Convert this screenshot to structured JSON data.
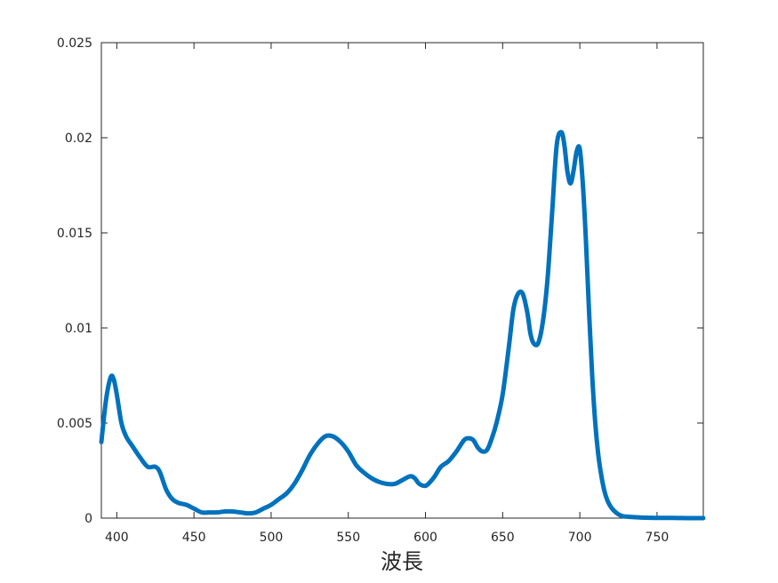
{
  "chart_data": {
    "type": "line",
    "title": "",
    "xlabel": "波長",
    "ylabel": "",
    "xlim": [
      390,
      780
    ],
    "ylim": [
      0,
      0.025
    ],
    "xticks": [
      400,
      450,
      500,
      550,
      600,
      650,
      700,
      750
    ],
    "yticks": [
      0,
      0.005,
      0.01,
      0.015,
      0.02,
      0.025
    ],
    "xtick_labels": [
      "400",
      "450",
      "500",
      "550",
      "600",
      "650",
      "700",
      "750"
    ],
    "ytick_labels": [
      "0",
      "0.005",
      "0.01",
      "0.015",
      "0.02",
      "0.025"
    ],
    "grid": false,
    "colors": {
      "line": "#0072BD",
      "axis": "#262626",
      "background": "#ffffff"
    },
    "series": [
      {
        "x": [
          390,
          393,
          396,
          398,
          400,
          403,
          406,
          410,
          415,
          420,
          425,
          428,
          432,
          436,
          440,
          445,
          450,
          455,
          460,
          465,
          470,
          475,
          480,
          485,
          490,
          495,
          500,
          505,
          510,
          515,
          520,
          525,
          530,
          535,
          540,
          545,
          550,
          555,
          560,
          565,
          570,
          575,
          580,
          585,
          590,
          593,
          596,
          600,
          603,
          606,
          610,
          615,
          620,
          625,
          628,
          631,
          634,
          637,
          640,
          643,
          646,
          650,
          654,
          657,
          660,
          663,
          666,
          668,
          670,
          673,
          676,
          679,
          682,
          685,
          688,
          690,
          692,
          694,
          696,
          698,
          700,
          702,
          704,
          706,
          708,
          710,
          712,
          714,
          716,
          718,
          720,
          722,
          725,
          728,
          730,
          735,
          740,
          745,
          750,
          760,
          770,
          780
        ],
        "y": [
          0.004,
          0.0062,
          0.0074,
          0.0073,
          0.0065,
          0.005,
          0.0043,
          0.0038,
          0.0032,
          0.0027,
          0.0027,
          0.0024,
          0.0015,
          0.001,
          0.0008,
          0.0007,
          0.0005,
          0.0003,
          0.0003,
          0.0003,
          0.00035,
          0.00035,
          0.0003,
          0.00025,
          0.0003,
          0.0005,
          0.0007,
          0.001,
          0.0013,
          0.0018,
          0.0025,
          0.0033,
          0.0039,
          0.0043,
          0.0043,
          0.004,
          0.0035,
          0.0028,
          0.0024,
          0.0021,
          0.0019,
          0.0018,
          0.0018,
          0.002,
          0.0022,
          0.0021,
          0.0018,
          0.0017,
          0.0019,
          0.0022,
          0.0027,
          0.003,
          0.0035,
          0.0041,
          0.0042,
          0.0041,
          0.0037,
          0.0035,
          0.0036,
          0.0042,
          0.005,
          0.0065,
          0.009,
          0.011,
          0.0118,
          0.0118,
          0.0108,
          0.0097,
          0.0092,
          0.0092,
          0.0103,
          0.0125,
          0.016,
          0.0196,
          0.0203,
          0.0196,
          0.0182,
          0.0176,
          0.0183,
          0.0193,
          0.0194,
          0.0175,
          0.0145,
          0.0108,
          0.0075,
          0.005,
          0.0033,
          0.0022,
          0.0014,
          0.0009,
          0.0006,
          0.0004,
          0.0002,
          0.0001,
          8e-05,
          5e-05,
          3e-05,
          2e-05,
          1e-05,
          1e-05,
          0.0,
          0.0
        ]
      }
    ]
  }
}
